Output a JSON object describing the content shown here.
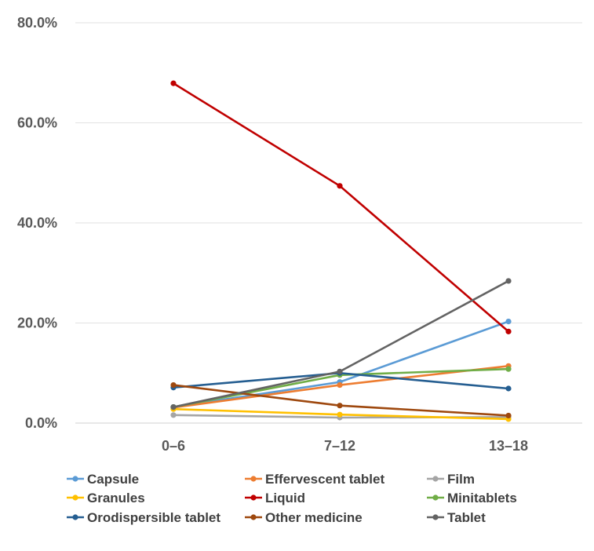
{
  "chart_data": {
    "type": "line",
    "title": "",
    "xlabel": "",
    "ylabel": "",
    "categories": [
      "0–6",
      "7–12",
      "13–18"
    ],
    "ylim": [
      0,
      80
    ],
    "y_ticks": [
      0,
      20,
      40,
      60,
      80
    ],
    "y_tick_labels": [
      "0.0%",
      "20.0%",
      "40.0%",
      "60.0%",
      "80.0%"
    ],
    "grid": true,
    "legend_position": "bottom",
    "series": [
      {
        "name": "Capsule",
        "color": "#5B9BD5",
        "values": [
          3.2,
          8.2,
          20.3
        ]
      },
      {
        "name": "Effervescent tablet",
        "color": "#ED7D31",
        "values": [
          3.1,
          7.6,
          11.4
        ]
      },
      {
        "name": "Film",
        "color": "#A5A5A5",
        "values": [
          1.6,
          1.1,
          1.2
        ]
      },
      {
        "name": "Granules",
        "color": "#FFC000",
        "values": [
          2.8,
          1.7,
          0.8
        ]
      },
      {
        "name": "Liquid",
        "color": "#C00000",
        "values": [
          67.9,
          47.4,
          18.3
        ]
      },
      {
        "name": "Minitablets",
        "color": "#70AD47",
        "values": [
          3.2,
          9.6,
          10.8
        ]
      },
      {
        "name": "Orodispersible tablet",
        "color": "#255E91",
        "values": [
          7.1,
          10.0,
          6.9
        ]
      },
      {
        "name": "Other medicine",
        "color": "#9E480E",
        "values": [
          7.6,
          3.5,
          1.5
        ]
      },
      {
        "name": "Tablet",
        "color": "#636363",
        "values": [
          3.2,
          10.3,
          28.4
        ]
      }
    ]
  }
}
